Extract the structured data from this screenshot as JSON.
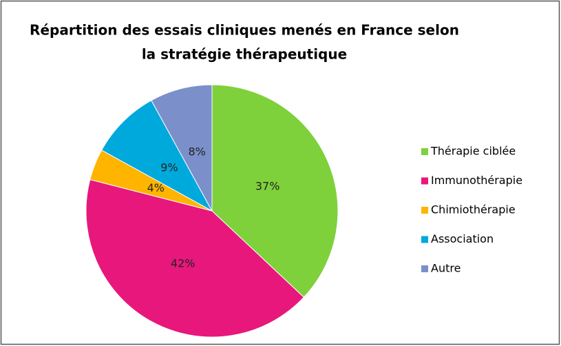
{
  "chart_data": {
    "type": "pie",
    "title": [
      "Répartition des essais cliniques menés en France selon",
      "la stratégie thérapeutique"
    ],
    "categories": [
      "Thérapie ciblée",
      "Immunothérapie",
      "Chimiothérapie",
      "Association",
      "Autre"
    ],
    "values": [
      37,
      42,
      4,
      9,
      8
    ],
    "value_labels": [
      "37%",
      "42%",
      "4%",
      "9%",
      "8%"
    ],
    "colors": [
      "#7ed13b",
      "#e8177b",
      "#ffb400",
      "#00a9dc",
      "#7b8fcb"
    ],
    "legend": "right"
  }
}
